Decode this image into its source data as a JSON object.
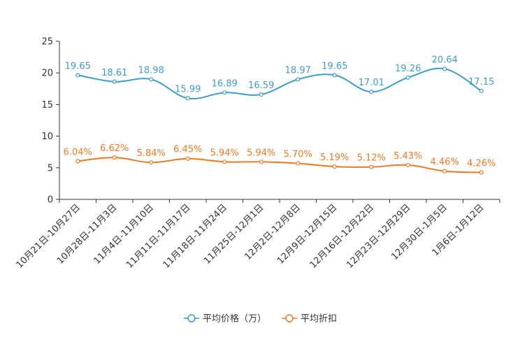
{
  "chart_data": {
    "type": "line",
    "title": "",
    "xlabel": "",
    "ylabel": "",
    "ylim": [
      0,
      25
    ],
    "yticks": [
      0,
      5,
      10,
      15,
      20,
      25
    ],
    "grid": false,
    "legend_position": "bottom-center",
    "categories": [
      "10月21日-10月27日",
      "10月28日-11月3日",
      "11月4日-11月10日",
      "11月11日-11月17日",
      "11月18日-11月24日",
      "11月25日-12月1日",
      "12月2日-12月8日",
      "12月9日-12月15日",
      "12月16日-12月22日",
      "12月23日-12月29日",
      "12月30日-1月5日",
      "1月6日-1月12日"
    ],
    "series": [
      {
        "name": "平均价格（万）",
        "color": "#3c9ccd",
        "values": [
          19.65,
          18.61,
          18.98,
          15.99,
          16.89,
          16.59,
          18.97,
          19.65,
          17.01,
          19.26,
          20.64,
          17.15
        ],
        "labels": [
          "19.65",
          "18.61",
          "18.98",
          "15.99",
          "16.89",
          "16.59",
          "18.97",
          "19.65",
          "17.01",
          "19.26",
          "20.64",
          "17.15"
        ]
      },
      {
        "name": "平均折扣",
        "color": "#f07823",
        "values": [
          6.04,
          6.62,
          5.84,
          6.45,
          5.94,
          5.94,
          5.7,
          5.19,
          5.12,
          5.43,
          4.46,
          4.26
        ],
        "labels": [
          "6.04%",
          "6.62%",
          "5.84%",
          "6.45%",
          "5.94%",
          "5.94%",
          "5.70%",
          "5.19%",
          "5.12%",
          "5.43%",
          "4.46%",
          "4.26%"
        ]
      }
    ]
  }
}
